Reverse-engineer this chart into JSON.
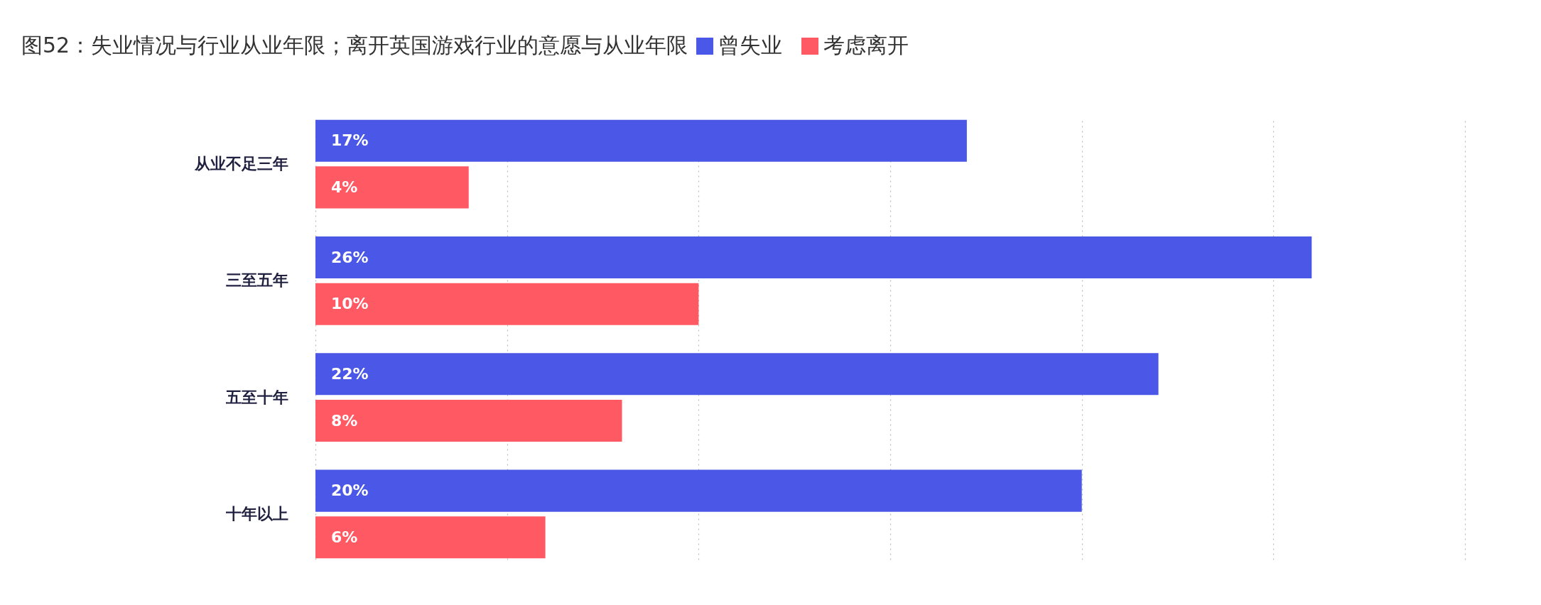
{
  "chart_data": {
    "type": "bar",
    "orientation": "horizontal",
    "title": "图52：失业情况与行业从业年限；离开英国游戏行业的意愿与从业年限",
    "categories": [
      "从业不足三年",
      "三至五年",
      "五至十年",
      "十年以上"
    ],
    "series": [
      {
        "name": "曾失业",
        "color": "#4b57e6",
        "values": [
          17,
          26,
          22,
          20
        ],
        "value_labels": [
          "17%",
          "26%",
          "22%",
          "20%"
        ]
      },
      {
        "name": "考虑离开",
        "color": "#ff5a64",
        "values": [
          4,
          10,
          8,
          6
        ],
        "value_labels": [
          "4%",
          "10%",
          "8%",
          "6%"
        ]
      }
    ],
    "xlim": [
      0,
      30
    ],
    "xticks": [
      {
        "value": 0,
        "label": null
      },
      {
        "value": 5,
        "label": null
      },
      {
        "value": 10,
        "label": null
      },
      {
        "value": 15,
        "label": null
      },
      {
        "value": 20,
        "label": null
      },
      {
        "value": 25,
        "label": null
      },
      {
        "value": 30,
        "label": null
      }
    ],
    "grid": "x",
    "legend": "top",
    "tick_labels": "y"
  }
}
